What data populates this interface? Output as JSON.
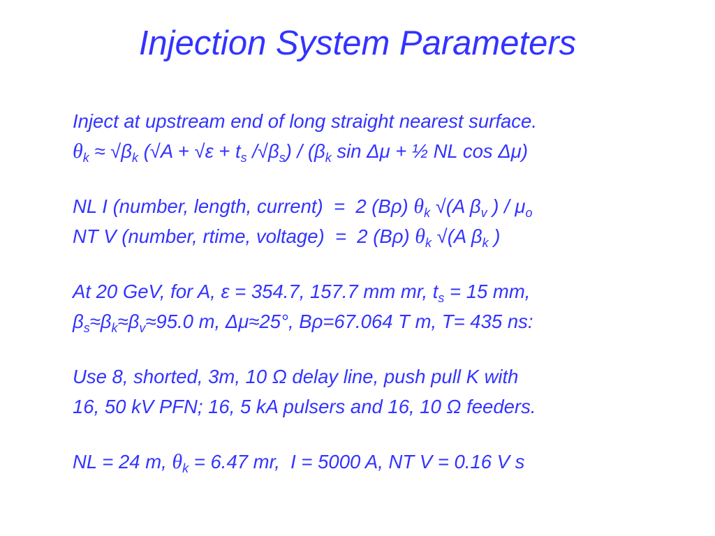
{
  "title": "Injection System Parameters",
  "paragraphs": [
    {
      "lines": [
        [
          "Inject at upstream end of long straight nearest surface."
        ],
        [
          {
            "symbol": "θ"
          },
          {
            "sub": "k"
          },
          " ≈ √β",
          {
            "sub": "k"
          },
          " (√A + √ε + t",
          {
            "sub": "s"
          },
          " /√β",
          {
            "sub": "s"
          },
          ") / (β",
          {
            "sub": "k"
          },
          " sin Δμ + ½ NL cos Δμ)"
        ]
      ]
    },
    {
      "lines": [
        [
          "NL I (number, length, current)  =  2 (Bρ) ",
          {
            "symbol": "θ"
          },
          {
            "sub": "k"
          },
          " √(A β",
          {
            "sub": "v"
          },
          " ) / μ",
          {
            "sub": "o"
          }
        ],
        [
          "NT V (number, rtime, voltage)  =  2 (Bρ) ",
          {
            "symbol": "θ"
          },
          {
            "sub": "k"
          },
          " √(A β",
          {
            "sub": "k"
          },
          " )"
        ]
      ]
    },
    {
      "lines": [
        [
          "At 20 GeV, for A, ε = 354.7, 157.7 mm mr, t",
          {
            "sub": "s"
          },
          " = 15 mm,"
        ],
        [
          "β",
          {
            "sub": "s"
          },
          "≈β",
          {
            "sub": "k"
          },
          "≈β",
          {
            "sub": "v"
          },
          "≈95.0 m, Δμ≈25°, Bρ=67.064 T m, T= 435 ns:"
        ]
      ]
    },
    {
      "lines": [
        [
          "Use 8, shorted, 3m, 10 Ω delay line, push pull K with"
        ],
        [
          "16, 50 kV PFN; 16, 5 kA pulsers and 16, 10 Ω feeders."
        ]
      ]
    },
    {
      "lines": [
        [
          "NL = 24 m, ",
          {
            "symbol": "θ"
          },
          {
            "sub": "k"
          },
          " = 6.47 mr,  I = 5000 A, NT V = 0.16 V s"
        ]
      ]
    }
  ]
}
